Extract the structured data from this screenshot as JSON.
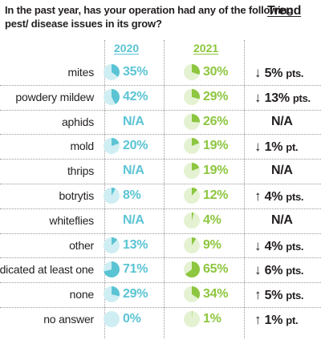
{
  "title": "In the past year, has your operation had any of the following pest/ disease issues in its grow?",
  "headers": {
    "y2020": "2020",
    "y2021": "2021",
    "trend": "Trend"
  },
  "colors": {
    "y2020": "#5bc4d4",
    "y2020_bg": "#cfeef3",
    "y2021": "#8dc63f",
    "y2021_bg": "#e4f2d2",
    "text": "#231f20"
  },
  "chart_data": {
    "type": "table",
    "title": "In the past year, has your operation had any of the following pest/ disease issues in its grow?",
    "columns": [
      "2020",
      "2021",
      "Trend"
    ],
    "rows": [
      {
        "label": "mites",
        "v2020": 35,
        "v2021": 30,
        "trend_dir": "down",
        "trend_val": "5%",
        "trend_unit": "pts."
      },
      {
        "label": "powdery mildew",
        "v2020": 42,
        "v2021": 29,
        "trend_dir": "down",
        "trend_val": "13%",
        "trend_unit": "pts."
      },
      {
        "label": "aphids",
        "v2020": null,
        "v2021": 26,
        "trend_dir": null,
        "trend_val": "N/A",
        "trend_unit": ""
      },
      {
        "label": "mold",
        "v2020": 20,
        "v2021": 19,
        "trend_dir": "down",
        "trend_val": "1%",
        "trend_unit": "pt."
      },
      {
        "label": "thrips",
        "v2020": null,
        "v2021": 19,
        "trend_dir": null,
        "trend_val": "N/A",
        "trend_unit": ""
      },
      {
        "label": "botrytis",
        "v2020": 8,
        "v2021": 12,
        "trend_dir": "up",
        "trend_val": "4%",
        "trend_unit": "pts."
      },
      {
        "label": "whiteflies",
        "v2020": null,
        "v2021": 4,
        "trend_dir": null,
        "trend_val": "N/A",
        "trend_unit": ""
      },
      {
        "label": "other",
        "v2020": 13,
        "v2021": 9,
        "trend_dir": "down",
        "trend_val": "4%",
        "trend_unit": "pts."
      },
      {
        "label": "indicated at least one",
        "v2020": 71,
        "v2021": 65,
        "trend_dir": "down",
        "trend_val": "6%",
        "trend_unit": "pts."
      },
      {
        "label": "none",
        "v2020": 29,
        "v2021": 34,
        "trend_dir": "up",
        "trend_val": "5%",
        "trend_unit": "pts."
      },
      {
        "label": "no answer",
        "v2020": 0,
        "v2021": 1,
        "trend_dir": "up",
        "trend_val": "1%",
        "trend_unit": "pt."
      }
    ],
    "na_text": "N/A"
  }
}
